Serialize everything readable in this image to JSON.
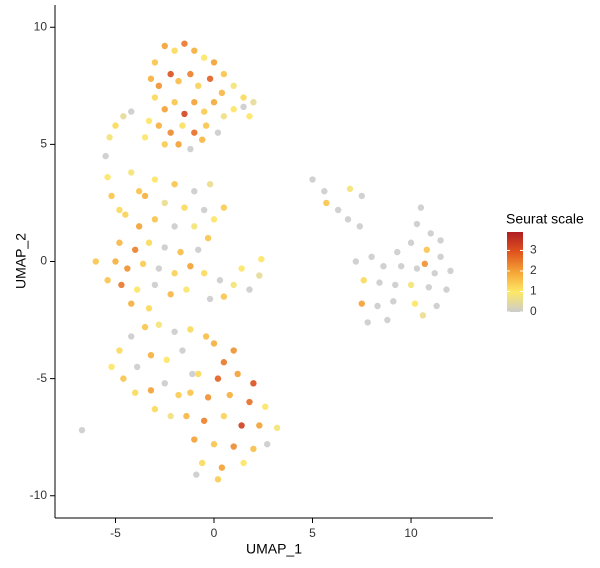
{
  "chart_data": {
    "type": "scatter",
    "xlabel": "UMAP_1",
    "ylabel": "UMAP_2",
    "xlim": [
      -8.07,
      14.16
    ],
    "ylim": [
      -10.95,
      10.95
    ],
    "xticks": [
      -5,
      0,
      5,
      10
    ],
    "yticks": [
      -10,
      -5,
      0,
      5,
      10
    ],
    "legend_title": "Seurat scale",
    "clim": [
      0,
      3.9
    ],
    "cticks": [
      0,
      1,
      2,
      3
    ],
    "colors": [
      "#cccccc",
      "#fde865",
      "#f5a535",
      "#e0531e",
      "#b01e24"
    ],
    "x": [
      -3,
      -2.5,
      -2,
      -1.5,
      -1,
      -0.5,
      0,
      0.5,
      1,
      1.5,
      2,
      1.8,
      -3.2,
      -2.8,
      -2.2,
      -1.8,
      -1.2,
      -0.8,
      -0.2,
      0.4,
      1,
      -3,
      -2.5,
      -2,
      -1.5,
      -1,
      -0.5,
      0,
      0.5,
      -3.3,
      -2.8,
      -2.2,
      -1.6,
      -1,
      -0.4,
      0.2,
      -2.5,
      -1.8,
      -1.2,
      -0.6,
      -3.5,
      1.5,
      -5.5,
      -5.3,
      -5,
      -4.6,
      -4.2,
      -5.4,
      -5.2,
      -4.8,
      -4.2,
      -3.8,
      -3,
      -2,
      -1,
      -3.5,
      -2.5,
      -1.5,
      -0.5,
      0,
      -4.5,
      -3.8,
      -3,
      -2,
      -1,
      -0.3,
      -4.8,
      -4,
      -3.3,
      -2.5,
      -1.7,
      -0.8,
      -5,
      -4.4,
      -3.6,
      -2.8,
      -2,
      -1.2,
      -5.4,
      -4.7,
      -3.9,
      -3,
      -2.2,
      -1.4,
      -4.2,
      -3.3,
      -6,
      0.5,
      -0.2,
      -0.5,
      0.3,
      1,
      1.8,
      0.5,
      -0.2,
      1.4,
      2.3,
      2.4,
      -5.2,
      -4.8,
      -4.2,
      -3.5,
      -2.8,
      -2,
      -1.2,
      -4.6,
      -3.9,
      -3.2,
      -2.4,
      -1.6,
      -4,
      -3.2,
      -2.5,
      -1.8,
      -3,
      -2.2,
      -1.1,
      -0.4,
      0,
      1,
      0.5,
      -0.8,
      0.2,
      1.2,
      2,
      -1.2,
      -0.3,
      0.8,
      1.8,
      2.6,
      -1.4,
      -0.5,
      0.5,
      1.4,
      2.3,
      3.2,
      -1,
      0,
      1,
      2,
      -0.6,
      0.4,
      1.5,
      -0.9,
      0.2,
      2.7,
      -6.7,
      5,
      5.6,
      5.7,
      6.3,
      6.8,
      7.4,
      7.5,
      6.9,
      10.5,
      10.3,
      11,
      10,
      9.3,
      10.8,
      11.5,
      7.2,
      8,
      8.6,
      9.5,
      10.3,
      11.2,
      12,
      7.6,
      8.4,
      9.2,
      10,
      10.9,
      11.8,
      7.5,
      8.3,
      9.1,
      10.2,
      11.3,
      7.8,
      8.8,
      10.6,
      11.5,
      10.7
    ],
    "y": [
      8.5,
      9.2,
      9,
      9.3,
      9,
      8.7,
      8.5,
      8,
      7.5,
      7,
      6.8,
      6.2,
      7.8,
      7.5,
      8,
      7.7,
      8,
      7.5,
      7.8,
      7.2,
      6.5,
      7,
      6.5,
      6.8,
      6.3,
      6.8,
      6.4,
      6.8,
      6.2,
      6,
      5.8,
      5.5,
      5.8,
      5.5,
      5.8,
      5.5,
      5,
      5,
      4.8,
      5.2,
      5.3,
      6.6,
      4.5,
      5.3,
      5.8,
      6.2,
      6.4,
      3.6,
      2.8,
      2.2,
      3.8,
      3,
      3.5,
      3.3,
      3,
      2.8,
      2.5,
      2.3,
      2.2,
      1.8,
      2,
      1.5,
      1.8,
      1.5,
      1.5,
      1,
      0.8,
      0.5,
      0.8,
      0.6,
      0.4,
      0.5,
      0,
      -0.3,
      -0.1,
      -0.3,
      -0.5,
      -0.2,
      -0.8,
      -1,
      -1.2,
      -1,
      -1.4,
      -1.2,
      -1.8,
      -2,
      0,
      2.3,
      3.3,
      -0.5,
      -0.8,
      -1,
      -1.2,
      -1.5,
      -1.6,
      -0.3,
      -0.6,
      0.1,
      -4.5,
      -3.8,
      -3.2,
      -2.8,
      -2.7,
      -3,
      -2.9,
      -5,
      -4.5,
      -4,
      -4.2,
      -3.8,
      -5.6,
      -5.5,
      -5.2,
      -5.7,
      -6.3,
      -6.6,
      -4.8,
      -3.2,
      -3.5,
      -3.8,
      -4.3,
      -4.8,
      -5,
      -4.8,
      -5.2,
      -5.6,
      -5.8,
      -5.7,
      -6,
      -6.2,
      -6.6,
      -6.8,
      -6.6,
      -7,
      -7,
      -7.1,
      -7.6,
      -7.8,
      -7.9,
      -8,
      -8.6,
      -8.8,
      -8.6,
      -9.1,
      -9.3,
      -7.8,
      -7.2,
      3.5,
      3,
      2.5,
      2.2,
      1.8,
      1.5,
      2.8,
      3.1,
      2.3,
      1.6,
      1.2,
      0.8,
      0.4,
      0.5,
      0.2,
      0,
      0.2,
      -0.2,
      -0.2,
      -0.3,
      -0.5,
      -0.4,
      -0.8,
      -0.9,
      -1,
      -1,
      -1.1,
      -1.2,
      -1.8,
      -1.9,
      -1.7,
      -1.8,
      -1.9,
      -2.6,
      -2.5,
      -2.3,
      0.9,
      -0.1
    ],
    "values": [
      1.5,
      2,
      1.2,
      2.5,
      1.8,
      1,
      2,
      1.5,
      0.8,
      1.2,
      0.5,
      1,
      1.8,
      2.2,
      3,
      1.6,
      2.4,
      1.3,
      2.8,
      1.7,
      1,
      1.2,
      2,
      1.5,
      3.2,
      2,
      1.4,
      1.9,
      0.7,
      1,
      1.8,
      2.3,
      1.1,
      2.6,
      1.5,
      0,
      1.4,
      2,
      0,
      1.7,
      0.9,
      0,
      0,
      0.8,
      1.2,
      0.5,
      0,
      1,
      1.5,
      1.2,
      0.8,
      1.5,
      1,
      1.5,
      0,
      1.8,
      0.6,
      1.2,
      0,
      1,
      1.3,
      2,
      1.5,
      0,
      0.8,
      1.5,
      1.7,
      2.4,
      1.2,
      0,
      1.6,
      0,
      1.8,
      2.2,
      1.4,
      0,
      1.3,
      2,
      1.5,
      2.5,
      1,
      0,
      1.7,
      0.9,
      1.8,
      1.2,
      1.5,
      1.4,
      0.6,
      1.2,
      0,
      0.8,
      0,
      1.5,
      0,
      1,
      0.5,
      1,
      1,
      1.2,
      0,
      1.5,
      0.8,
      0,
      1.2,
      1.5,
      0,
      1.8,
      1,
      0,
      1.2,
      2,
      0,
      1.4,
      1.2,
      0.7,
      0,
      1.6,
      1.8,
      2.2,
      2.5,
      1.2,
      2.8,
      2,
      3,
      1.5,
      2.2,
      1.8,
      2.6,
      1,
      1.7,
      2.4,
      1.3,
      3.3,
      2,
      0.8,
      2,
      1.5,
      2.3,
      1.6,
      1.2,
      2,
      1,
      0,
      1.4,
      0,
      0,
      0,
      0,
      1.5,
      0,
      0,
      0,
      0,
      0.8,
      0,
      0,
      0,
      0,
      0,
      1.5,
      0,
      0,
      0,
      0,
      0,
      0,
      0,
      0,
      1.2,
      0,
      0,
      0.8,
      0,
      0,
      2,
      0,
      0,
      1,
      0,
      0,
      0,
      0.6,
      0,
      2.2
    ]
  }
}
